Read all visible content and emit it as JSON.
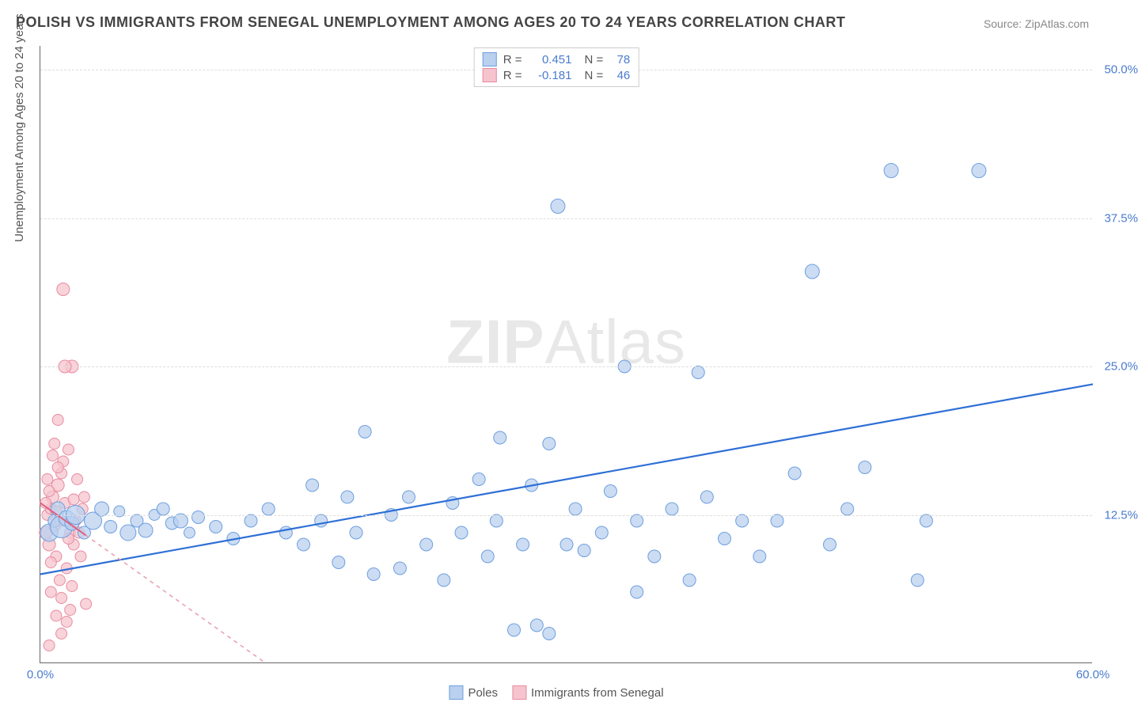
{
  "title": "POLISH VS IMMIGRANTS FROM SENEGAL UNEMPLOYMENT AMONG AGES 20 TO 24 YEARS CORRELATION CHART",
  "source": "Source: ZipAtlas.com",
  "watermark_a": "ZIP",
  "watermark_b": "Atlas",
  "ylabel": "Unemployment Among Ages 20 to 24 years",
  "chart": {
    "type": "scatter",
    "xlim": [
      0,
      60
    ],
    "ylim": [
      0,
      52
    ],
    "x_ticks": [
      {
        "v": 0,
        "label": "0.0%"
      },
      {
        "v": 60,
        "label": "60.0%"
      }
    ],
    "y_ticks": [
      {
        "v": 12.5,
        "label": "12.5%"
      },
      {
        "v": 25.0,
        "label": "25.0%"
      },
      {
        "v": 37.5,
        "label": "37.5%"
      },
      {
        "v": 50.0,
        "label": "50.0%"
      }
    ],
    "grid_color": "#dddddd",
    "background_color": "#ffffff",
    "series": [
      {
        "key": "poles",
        "label": "Poles",
        "color_fill": "#b9d0ef",
        "color_stroke": "#6f9fde",
        "marker_r_default": 8,
        "trend": {
          "m": 0.2667,
          "b": 7.5,
          "x0": 0,
          "x1": 60,
          "color": "#2e6fd6",
          "width": 2.2,
          "dashed": false
        },
        "stats": {
          "R": "0.451",
          "N": "78"
        },
        "points": [
          {
            "x": 0.5,
            "y": 11,
            "r": 11
          },
          {
            "x": 0.8,
            "y": 12,
            "r": 8
          },
          {
            "x": 1.0,
            "y": 13,
            "r": 9
          },
          {
            "x": 1.2,
            "y": 11.5,
            "r": 14
          },
          {
            "x": 1.5,
            "y": 12.2,
            "r": 10
          },
          {
            "x": 1.8,
            "y": 11.8,
            "r": 9
          },
          {
            "x": 2.0,
            "y": 12.5,
            "r": 12
          },
          {
            "x": 2.5,
            "y": 11,
            "r": 8
          },
          {
            "x": 3,
            "y": 12,
            "r": 11
          },
          {
            "x": 3.5,
            "y": 13,
            "r": 9
          },
          {
            "x": 4,
            "y": 11.5,
            "r": 8
          },
          {
            "x": 4.5,
            "y": 12.8,
            "r": 7
          },
          {
            "x": 5,
            "y": 11,
            "r": 10
          },
          {
            "x": 5.5,
            "y": 12,
            "r": 8
          },
          {
            "x": 6,
            "y": 11.2,
            "r": 9
          },
          {
            "x": 6.5,
            "y": 12.5,
            "r": 7
          },
          {
            "x": 7,
            "y": 13,
            "r": 8
          },
          {
            "x": 7.5,
            "y": 11.8,
            "r": 8
          },
          {
            "x": 8,
            "y": 12,
            "r": 9
          },
          {
            "x": 8.5,
            "y": 11,
            "r": 7
          },
          {
            "x": 9,
            "y": 12.3,
            "r": 8
          },
          {
            "x": 10,
            "y": 11.5,
            "r": 8
          },
          {
            "x": 11,
            "y": 10.5,
            "r": 8
          },
          {
            "x": 12,
            "y": 12,
            "r": 8
          },
          {
            "x": 13,
            "y": 13,
            "r": 8
          },
          {
            "x": 14,
            "y": 11,
            "r": 8
          },
          {
            "x": 15,
            "y": 10,
            "r": 8
          },
          {
            "x": 15.5,
            "y": 15,
            "r": 8
          },
          {
            "x": 16,
            "y": 12,
            "r": 8
          },
          {
            "x": 17,
            "y": 8.5,
            "r": 8
          },
          {
            "x": 17.5,
            "y": 14,
            "r": 8
          },
          {
            "x": 18,
            "y": 11,
            "r": 8
          },
          {
            "x": 18.5,
            "y": 19.5,
            "r": 8
          },
          {
            "x": 19,
            "y": 7.5,
            "r": 8
          },
          {
            "x": 20,
            "y": 12.5,
            "r": 8
          },
          {
            "x": 20.5,
            "y": 8,
            "r": 8
          },
          {
            "x": 21,
            "y": 14,
            "r": 8
          },
          {
            "x": 22,
            "y": 10,
            "r": 8
          },
          {
            "x": 23,
            "y": 7,
            "r": 8
          },
          {
            "x": 23.5,
            "y": 13.5,
            "r": 8
          },
          {
            "x": 24,
            "y": 11,
            "r": 8
          },
          {
            "x": 25,
            "y": 15.5,
            "r": 8
          },
          {
            "x": 25.5,
            "y": 9,
            "r": 8
          },
          {
            "x": 26,
            "y": 12,
            "r": 8
          },
          {
            "x": 26.2,
            "y": 19,
            "r": 8
          },
          {
            "x": 27,
            "y": 2.8,
            "r": 8
          },
          {
            "x": 27.5,
            "y": 10,
            "r": 8
          },
          {
            "x": 28,
            "y": 15,
            "r": 8
          },
          {
            "x": 28.3,
            "y": 3.2,
            "r": 8
          },
          {
            "x": 29,
            "y": 2.5,
            "r": 8
          },
          {
            "x": 29.5,
            "y": 38.5,
            "r": 9
          },
          {
            "x": 29,
            "y": 18.5,
            "r": 8
          },
          {
            "x": 30,
            "y": 10,
            "r": 8
          },
          {
            "x": 30.5,
            "y": 13,
            "r": 8
          },
          {
            "x": 31,
            "y": 9.5,
            "r": 8
          },
          {
            "x": 32,
            "y": 11,
            "r": 8
          },
          {
            "x": 32.5,
            "y": 14.5,
            "r": 8
          },
          {
            "x": 33.3,
            "y": 25,
            "r": 8
          },
          {
            "x": 34,
            "y": 6,
            "r": 8
          },
          {
            "x": 34,
            "y": 12,
            "r": 8
          },
          {
            "x": 35,
            "y": 9,
            "r": 8
          },
          {
            "x": 36,
            "y": 13,
            "r": 8
          },
          {
            "x": 37,
            "y": 7,
            "r": 8
          },
          {
            "x": 37.5,
            "y": 24.5,
            "r": 8
          },
          {
            "x": 38,
            "y": 14,
            "r": 8
          },
          {
            "x": 39,
            "y": 10.5,
            "r": 8
          },
          {
            "x": 40,
            "y": 12,
            "r": 8
          },
          {
            "x": 41,
            "y": 9,
            "r": 8
          },
          {
            "x": 42,
            "y": 12,
            "r": 8
          },
          {
            "x": 43,
            "y": 16,
            "r": 8
          },
          {
            "x": 44,
            "y": 33,
            "r": 9
          },
          {
            "x": 45,
            "y": 10,
            "r": 8
          },
          {
            "x": 47,
            "y": 16.5,
            "r": 8
          },
          {
            "x": 48.5,
            "y": 41.5,
            "r": 9
          },
          {
            "x": 50,
            "y": 7,
            "r": 8
          },
          {
            "x": 53.5,
            "y": 41.5,
            "r": 9
          },
          {
            "x": 46,
            "y": 13,
            "r": 8
          },
          {
            "x": 50.5,
            "y": 12,
            "r": 8
          }
        ]
      },
      {
        "key": "senegal",
        "label": "Immigrants from Senegal",
        "color_fill": "#f6c4ce",
        "color_stroke": "#e88ba0",
        "marker_r_default": 8,
        "trend": {
          "m": -1.05,
          "b": 13.5,
          "x0": 0,
          "x1": 12.8,
          "color": "#e89cac",
          "width": 1.5,
          "dashed": true
        },
        "trend_solid": {
          "m": -1.05,
          "b": 13.5,
          "x0": 0,
          "x1": 2.6,
          "color": "#e06080",
          "width": 2
        },
        "stats": {
          "R": "-0.181",
          "N": "46"
        },
        "points": [
          {
            "x": 0.3,
            "y": 11,
            "r": 8
          },
          {
            "x": 0.4,
            "y": 12.5,
            "r": 7
          },
          {
            "x": 0.5,
            "y": 10,
            "r": 8
          },
          {
            "x": 0.6,
            "y": 13,
            "r": 7
          },
          {
            "x": 0.7,
            "y": 14,
            "r": 8
          },
          {
            "x": 0.8,
            "y": 11.5,
            "r": 7
          },
          {
            "x": 0.9,
            "y": 9,
            "r": 7
          },
          {
            "x": 1.0,
            "y": 15,
            "r": 8
          },
          {
            "x": 1.1,
            "y": 12,
            "r": 7
          },
          {
            "x": 1.2,
            "y": 16,
            "r": 7
          },
          {
            "x": 1.3,
            "y": 17,
            "r": 7
          },
          {
            "x": 1.4,
            "y": 13.5,
            "r": 7
          },
          {
            "x": 1.5,
            "y": 8,
            "r": 7
          },
          {
            "x": 1.6,
            "y": 18,
            "r": 7
          },
          {
            "x": 1.7,
            "y": 11,
            "r": 7
          },
          {
            "x": 1.8,
            "y": 25,
            "r": 8
          },
          {
            "x": 1.9,
            "y": 10,
            "r": 7
          },
          {
            "x": 1.0,
            "y": 20.5,
            "r": 7
          },
          {
            "x": 1.4,
            "y": 25,
            "r": 8
          },
          {
            "x": 0.6,
            "y": 6,
            "r": 7
          },
          {
            "x": 0.9,
            "y": 4,
            "r": 7
          },
          {
            "x": 1.2,
            "y": 5.5,
            "r": 7
          },
          {
            "x": 1.5,
            "y": 3.5,
            "r": 7
          },
          {
            "x": 0.5,
            "y": 1.5,
            "r": 7
          },
          {
            "x": 1.8,
            "y": 6.5,
            "r": 7
          },
          {
            "x": 2.0,
            "y": 12,
            "r": 7
          },
          {
            "x": 2.1,
            "y": 15.5,
            "r": 7
          },
          {
            "x": 1.1,
            "y": 7,
            "r": 7
          },
          {
            "x": 0.7,
            "y": 17.5,
            "r": 7
          },
          {
            "x": 2.3,
            "y": 9,
            "r": 7
          },
          {
            "x": 2.4,
            "y": 13,
            "r": 7
          },
          {
            "x": 2.6,
            "y": 5,
            "r": 7
          },
          {
            "x": 1.3,
            "y": 31.5,
            "r": 8
          },
          {
            "x": 0.4,
            "y": 15.5,
            "r": 7
          },
          {
            "x": 0.8,
            "y": 18.5,
            "r": 7
          },
          {
            "x": 1.6,
            "y": 10.5,
            "r": 7
          },
          {
            "x": 1.9,
            "y": 13.8,
            "r": 7
          },
          {
            "x": 0.3,
            "y": 13.5,
            "r": 7
          },
          {
            "x": 0.6,
            "y": 8.5,
            "r": 7
          },
          {
            "x": 1.0,
            "y": 16.5,
            "r": 7
          },
          {
            "x": 2.2,
            "y": 11,
            "r": 7
          },
          {
            "x": 2.5,
            "y": 14,
            "r": 7
          },
          {
            "x": 1.2,
            "y": 2.5,
            "r": 7
          },
          {
            "x": 1.7,
            "y": 4.5,
            "r": 7
          },
          {
            "x": 0.9,
            "y": 12.8,
            "r": 7
          },
          {
            "x": 0.5,
            "y": 14.5,
            "r": 7
          }
        ]
      }
    ]
  },
  "stats_labels": {
    "R": "R =",
    "N": "N ="
  }
}
